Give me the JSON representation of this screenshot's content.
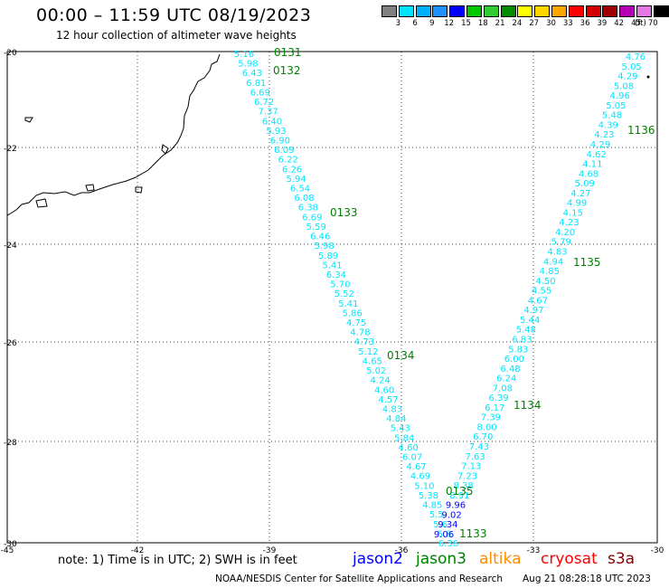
{
  "header": {
    "title": "00:00 – 11:59 UTC 08/19/2023",
    "subtitle": "12 hour collection of altimeter wave heights"
  },
  "color_scale": {
    "unit": "(ft)",
    "bins": [
      {
        "label": "",
        "color": "#808080"
      },
      {
        "label": "3",
        "color": "#00e5ff"
      },
      {
        "label": "6",
        "color": "#00b0ff"
      },
      {
        "label": "9",
        "color": "#1e90ff"
      },
      {
        "label": "12",
        "color": "#0000ff"
      },
      {
        "label": "15",
        "color": "#00c800"
      },
      {
        "label": "18",
        "color": "#32cd32"
      },
      {
        "label": "21",
        "color": "#008c00"
      },
      {
        "label": "24",
        "color": "#ffff00"
      },
      {
        "label": "27",
        "color": "#ffd700"
      },
      {
        "label": "30",
        "color": "#ffa500"
      },
      {
        "label": "33",
        "color": "#ff0000"
      },
      {
        "label": "36",
        "color": "#d70000"
      },
      {
        "label": "39",
        "color": "#a00000"
      },
      {
        "label": "42",
        "color": "#b400b4"
      },
      {
        "label": "45",
        "color": "#e678e6"
      },
      {
        "label": "70",
        "color": "#000000"
      }
    ]
  },
  "axes": {
    "lat_labels": [
      "-20",
      "-22",
      "-24",
      "-26",
      "-28",
      "-30"
    ],
    "lon_labels": [
      "-45",
      "-42",
      "-39",
      "-36",
      "-33",
      "-30"
    ]
  },
  "tracks": [
    {
      "id": "descending",
      "points": [
        [
          "5.16",
          "#00e5ff"
        ],
        [
          "5.98",
          "#00e5ff"
        ],
        [
          "6.43",
          "#00e5ff"
        ],
        [
          "6.81",
          "#00e5ff"
        ],
        [
          "6.69",
          "#00e5ff"
        ],
        [
          "6.72",
          "#00e5ff"
        ],
        [
          "7.37",
          "#00e5ff"
        ],
        [
          "6.40",
          "#00e5ff"
        ],
        [
          "5.93",
          "#00e5ff"
        ],
        [
          "6.90",
          "#00e5ff"
        ],
        [
          "6.09",
          "#00e5ff"
        ],
        [
          "6.22",
          "#00e5ff"
        ],
        [
          "6.26",
          "#00e5ff"
        ],
        [
          "5.94",
          "#00e5ff"
        ],
        [
          "6.54",
          "#00e5ff"
        ],
        [
          "6.08",
          "#00e5ff"
        ],
        [
          "6.38",
          "#00e5ff"
        ],
        [
          "6.69",
          "#00e5ff"
        ],
        [
          "5.59",
          "#00e5ff"
        ],
        [
          "6.46",
          "#00e5ff"
        ],
        [
          "5.98",
          "#00e5ff"
        ],
        [
          "5.89",
          "#00e5ff"
        ],
        [
          "5.41",
          "#00e5ff"
        ],
        [
          "6.34",
          "#00e5ff"
        ],
        [
          "5.70",
          "#00e5ff"
        ],
        [
          "5.52",
          "#00e5ff"
        ],
        [
          "5.41",
          "#00e5ff"
        ],
        [
          "5.86",
          "#00e5ff"
        ],
        [
          "4.75",
          "#00e5ff"
        ],
        [
          "4.78",
          "#00e5ff"
        ],
        [
          "4.73",
          "#00e5ff"
        ],
        [
          "5.12",
          "#00e5ff"
        ],
        [
          "4.65",
          "#00e5ff"
        ],
        [
          "5.02",
          "#00e5ff"
        ],
        [
          "4.24",
          "#00e5ff"
        ],
        [
          "4.60",
          "#00e5ff"
        ],
        [
          "4.57",
          "#00e5ff"
        ],
        [
          "4.83",
          "#00e5ff"
        ],
        [
          "4.84",
          "#00e5ff"
        ],
        [
          "5.43",
          "#00e5ff"
        ],
        [
          "5.84",
          "#00e5ff"
        ],
        [
          "4.60",
          "#00e5ff"
        ],
        [
          "6.07",
          "#00e5ff"
        ],
        [
          "4.67",
          "#00e5ff"
        ],
        [
          "4.69",
          "#00e5ff"
        ],
        [
          "5.10",
          "#00e5ff"
        ],
        [
          "5.38",
          "#00e5ff"
        ],
        [
          "4.85",
          "#00e5ff"
        ],
        [
          "5.5",
          "#00e5ff"
        ],
        [
          "5.6",
          "#00e5ff"
        ],
        [
          "5.8",
          "#00e5ff"
        ],
        [
          "6.36",
          "#00e5ff"
        ]
      ]
    },
    {
      "id": "ascending",
      "points": [
        [
          "9.06",
          "#0000ff"
        ],
        [
          "9.34",
          "#0000ff"
        ],
        [
          "9.02",
          "#0000ff"
        ],
        [
          "9.96",
          "#0000ff"
        ],
        [
          "8.91",
          "#00e5ff"
        ],
        [
          "8.38",
          "#00e5ff"
        ],
        [
          "7.23",
          "#00e5ff"
        ],
        [
          "7.13",
          "#00e5ff"
        ],
        [
          "7.63",
          "#00e5ff"
        ],
        [
          "7.43",
          "#00e5ff"
        ],
        [
          "6.70",
          "#00e5ff"
        ],
        [
          "8.00",
          "#00e5ff"
        ],
        [
          "7.39",
          "#00e5ff"
        ],
        [
          "6.17",
          "#00e5ff"
        ],
        [
          "6.39",
          "#00e5ff"
        ],
        [
          "7.08",
          "#00e5ff"
        ],
        [
          "6.24",
          "#00e5ff"
        ],
        [
          "6.48",
          "#00e5ff"
        ],
        [
          "6.00",
          "#00e5ff"
        ],
        [
          "5.83",
          "#00e5ff"
        ],
        [
          "6.83",
          "#00e5ff"
        ],
        [
          "5.48",
          "#00e5ff"
        ],
        [
          "5.44",
          "#00e5ff"
        ],
        [
          "4.97",
          "#00e5ff"
        ],
        [
          "4.67",
          "#00e5ff"
        ],
        [
          "4.55",
          "#00e5ff"
        ],
        [
          "4.50",
          "#00e5ff"
        ],
        [
          "4.85",
          "#00e5ff"
        ],
        [
          "4.94",
          "#00e5ff"
        ],
        [
          "4.83",
          "#00e5ff"
        ],
        [
          "5.79",
          "#00e5ff"
        ],
        [
          "4.20",
          "#00e5ff"
        ],
        [
          "4.23",
          "#00e5ff"
        ],
        [
          "4.15",
          "#00e5ff"
        ],
        [
          "4.99",
          "#00e5ff"
        ],
        [
          "4.27",
          "#00e5ff"
        ],
        [
          "5.09",
          "#00e5ff"
        ],
        [
          "4.68",
          "#00e5ff"
        ],
        [
          "4.11",
          "#00e5ff"
        ],
        [
          "4.62",
          "#00e5ff"
        ],
        [
          "4.29",
          "#00e5ff"
        ],
        [
          "4.23",
          "#00e5ff"
        ],
        [
          "4.39",
          "#00e5ff"
        ],
        [
          "5.48",
          "#00e5ff"
        ],
        [
          "5.05",
          "#00e5ff"
        ],
        [
          "4.96",
          "#00e5ff"
        ],
        [
          "5.08",
          "#00e5ff"
        ],
        [
          "4.29",
          "#00e5ff"
        ],
        [
          "5.05",
          "#00e5ff"
        ],
        [
          "4.76",
          "#00e5ff"
        ]
      ]
    }
  ],
  "time_labels": [
    "0131",
    "0132",
    "0133",
    "0134",
    "0135",
    "1133",
    "1134",
    "1135",
    "1136"
  ],
  "time_label_color": "#008000",
  "legend": {
    "note": "note: 1) Time is in UTC; 2) SWH is in feet",
    "satellites": [
      {
        "name": "jason2",
        "color": "#0000ff"
      },
      {
        "name": "jason3",
        "color": "#008000"
      },
      {
        "name": "altika",
        "color": "#ff8c00"
      },
      {
        "name": "cryosat",
        "color": "#ff0000"
      },
      {
        "name": "s3a",
        "color": "#800000"
      }
    ]
  },
  "footer": {
    "credit": "NOAA/NESDIS Center for Satellite Applications and Research",
    "timestamp": "Aug 21 08:28:18 UTC 2023"
  }
}
